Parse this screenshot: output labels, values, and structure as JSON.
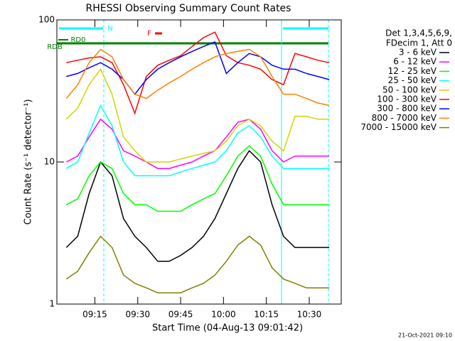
{
  "chart_data": {
    "type": "line",
    "title": "RHESSI Observing Summary Count Rates",
    "x_label": "Start Time (04-Aug-13 09:01:42)",
    "y_label": "Count Rate (s⁻¹ detector⁻¹)",
    "legend_header": [
      "Det 1,3,4,5,6,9,",
      "FDecim 1, Att 0"
    ],
    "footer": "21-Oct-2021 09:10",
    "annotations": [
      "N",
      "F",
      "RD0",
      "RDB"
    ],
    "y_log": true,
    "xlim": [
      541.7,
      641.2
    ],
    "ylim": [
      1,
      100
    ],
    "xticks": [
      {
        "value": 555,
        "label": "09:15"
      },
      {
        "value": 570,
        "label": "09:30"
      },
      {
        "value": 585,
        "label": "09:45"
      },
      {
        "value": 600,
        "label": "10:00"
      },
      {
        "value": 615,
        "label": "10:15"
      },
      {
        "value": 630,
        "label": "10:30"
      }
    ],
    "yticks": [
      1,
      10,
      100
    ],
    "x": [
      545,
      549,
      553,
      557,
      561,
      565,
      569,
      573,
      577,
      581,
      585,
      589,
      593,
      597,
      601,
      605,
      609,
      613,
      617,
      621,
      625,
      629,
      633,
      637
    ],
    "series": [
      {
        "name": "3 - 6 keV",
        "color": "#000000",
        "values": [
          2.5,
          3,
          6,
          10,
          8,
          4,
          3,
          2.5,
          2,
          2,
          2.2,
          2.5,
          3,
          4,
          6,
          9,
          12,
          10,
          5,
          3,
          2.5,
          2.5,
          2.5,
          2.5
        ]
      },
      {
        "name": "6 - 12 keV",
        "color": "#ff00ff",
        "values": [
          10,
          11,
          15,
          20,
          17,
          12,
          11,
          10,
          9,
          9,
          9.5,
          10,
          11,
          12,
          15,
          19,
          20,
          17,
          12,
          10,
          11,
          11,
          11,
          11
        ]
      },
      {
        "name": "12 - 25 keV",
        "color": "#00ff00",
        "values": [
          5,
          5.5,
          8,
          10,
          9,
          6,
          5,
          5,
          4.5,
          4.5,
          4.5,
          5,
          5.5,
          6,
          8,
          11,
          13,
          11,
          7,
          5,
          5,
          5,
          5,
          5
        ]
      },
      {
        "name": "25 - 50 keV",
        "color": "#00ffff",
        "values": [
          9,
          10,
          16,
          25,
          18,
          10,
          8,
          8,
          8,
          8,
          8.5,
          9,
          9.5,
          10,
          12,
          16,
          18,
          15,
          11,
          9,
          9,
          9,
          9,
          9
        ]
      },
      {
        "name": "50 - 100 keV",
        "color": "#d4d400",
        "values": [
          20,
          24,
          35,
          45,
          30,
          15,
          12,
          10,
          10,
          10,
          10.5,
          11,
          11.5,
          12,
          14,
          18,
          20,
          18,
          14,
          12,
          21,
          21,
          20,
          20
        ]
      },
      {
        "name": "100 - 300 keV",
        "color": "#ff0000",
        "values": [
          50,
          52,
          54,
          55,
          50,
          35,
          22,
          40,
          48,
          52,
          56,
          65,
          75,
          82,
          56,
          50,
          48,
          45,
          38,
          35,
          58,
          55,
          52,
          50
        ]
      },
      {
        "name": "300 - 800 keV",
        "color": "#0000ff",
        "values": [
          40,
          42,
          46,
          50,
          45,
          38,
          30,
          38,
          45,
          50,
          55,
          60,
          65,
          70,
          42,
          50,
          58,
          55,
          48,
          45,
          45,
          42,
          40,
          38
        ]
      },
      {
        "name": "800 - 7000 keV",
        "color": "#ff8000",
        "values": [
          28,
          35,
          50,
          62,
          55,
          38,
          30,
          28,
          32,
          36,
          40,
          45,
          50,
          55,
          58,
          60,
          62,
          55,
          40,
          30,
          30,
          28,
          26,
          25
        ]
      },
      {
        "name": "7000 - 15000 keV",
        "color": "#808000",
        "values": [
          1.5,
          1.7,
          2.3,
          3,
          2.5,
          1.6,
          1.4,
          1.3,
          1.2,
          1.2,
          1.2,
          1.3,
          1.4,
          1.6,
          2,
          2.6,
          3,
          2.6,
          1.8,
          1.5,
          1.4,
          1.3,
          1.3,
          1.3
        ]
      }
    ]
  }
}
